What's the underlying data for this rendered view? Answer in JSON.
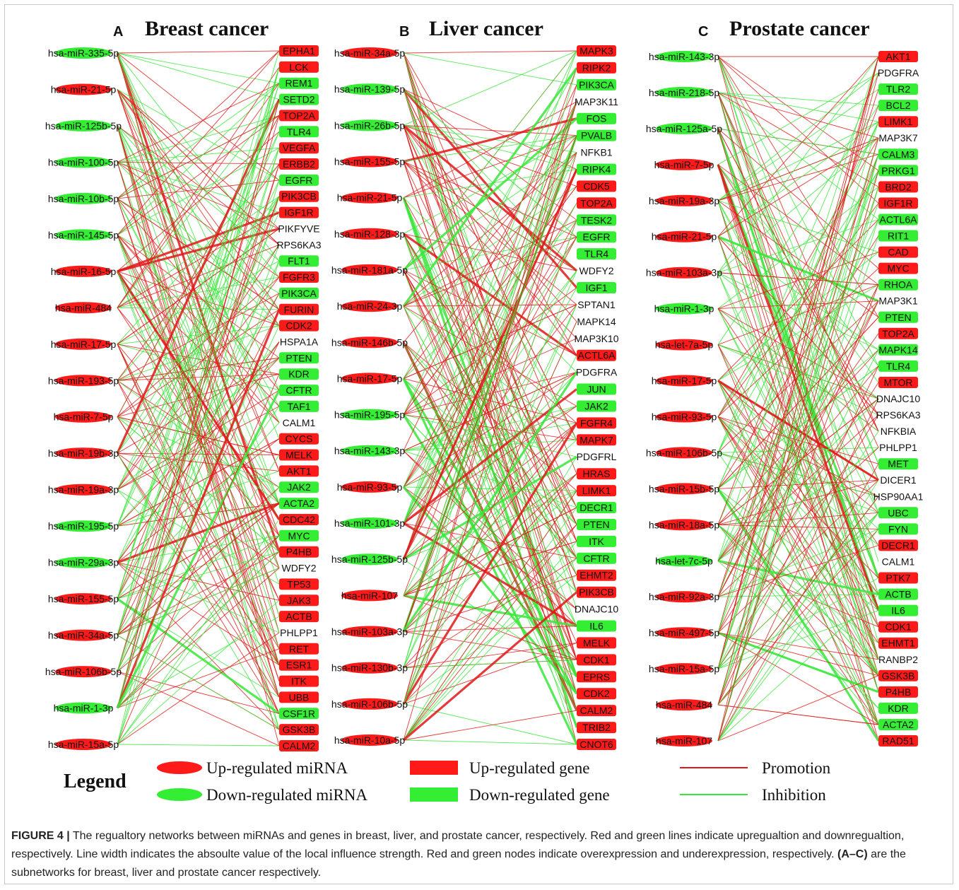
{
  "figure": {
    "panels": [
      {
        "letter": "A",
        "title": "Breast cancer",
        "mirnas": [
          {
            "label": "hsa-miR-335-5p",
            "status": "down"
          },
          {
            "label": "hsa-miR-21-5p",
            "status": "up"
          },
          {
            "label": "hsa-miR-125b-5p",
            "status": "down"
          },
          {
            "label": "hsa-miR-100-5p",
            "status": "down"
          },
          {
            "label": "hsa-miR-10b-5p",
            "status": "down"
          },
          {
            "label": "hsa-miR-145-5p",
            "status": "down"
          },
          {
            "label": "hsa-miR-16-5p",
            "status": "up"
          },
          {
            "label": "hsa-miR-484",
            "status": "up"
          },
          {
            "label": "hsa-miR-17-5p",
            "status": "up"
          },
          {
            "label": "hsa-miR-193-5p",
            "status": "up"
          },
          {
            "label": "hsa-miR-7-5p",
            "status": "up"
          },
          {
            "label": "hsa-miR-19b-3p",
            "status": "up"
          },
          {
            "label": "hsa-miR-19a-3p",
            "status": "up"
          },
          {
            "label": "hsa-miR-195-5p",
            "status": "down"
          },
          {
            "label": "hsa-miR-29a-3p",
            "status": "down"
          },
          {
            "label": "hsa-miR-155-5p",
            "status": "up"
          },
          {
            "label": "hsa-miR-34a-5p",
            "status": "up"
          },
          {
            "label": "hsa-miR-106b-5p",
            "status": "up"
          },
          {
            "label": "hsa-miR-1-3p",
            "status": "down"
          },
          {
            "label": "hsa-miR-15a-5p",
            "status": "up"
          }
        ],
        "genes": [
          {
            "label": "EPHA1",
            "status": "up"
          },
          {
            "label": "LCK",
            "status": "up"
          },
          {
            "label": "REM1",
            "status": "down"
          },
          {
            "label": "SETD2",
            "status": "down"
          },
          {
            "label": "TOP2A",
            "status": "up"
          },
          {
            "label": "TLR4",
            "status": "down"
          },
          {
            "label": "VEGFA",
            "status": "up"
          },
          {
            "label": "ERBB2",
            "status": "up"
          },
          {
            "label": "EGFR",
            "status": "down"
          },
          {
            "label": "PIK3CB",
            "status": "up"
          },
          {
            "label": "IGF1R",
            "status": "up"
          },
          {
            "label": "PIKFYVE",
            "status": "none"
          },
          {
            "label": "RPS6KA3",
            "status": "none"
          },
          {
            "label": "FLT1",
            "status": "down"
          },
          {
            "label": "FGFR3",
            "status": "up"
          },
          {
            "label": "PIK3CA",
            "status": "down"
          },
          {
            "label": "FURIN",
            "status": "up"
          },
          {
            "label": "CDK2",
            "status": "up"
          },
          {
            "label": "HSPA1A",
            "status": "none"
          },
          {
            "label": "PTEN",
            "status": "down"
          },
          {
            "label": "KDR",
            "status": "down"
          },
          {
            "label": "CFTR",
            "status": "down"
          },
          {
            "label": "TAF1",
            "status": "down"
          },
          {
            "label": "CALM1",
            "status": "none"
          },
          {
            "label": "CYCS",
            "status": "up"
          },
          {
            "label": "MELK",
            "status": "up"
          },
          {
            "label": "AKT1",
            "status": "up"
          },
          {
            "label": "JAK2",
            "status": "down"
          },
          {
            "label": "ACTA2",
            "status": "down"
          },
          {
            "label": "CDC42",
            "status": "up"
          },
          {
            "label": "MYC",
            "status": "down"
          },
          {
            "label": "P4HB",
            "status": "up"
          },
          {
            "label": "WDFY2",
            "status": "none"
          },
          {
            "label": "TP53",
            "status": "up"
          },
          {
            "label": "JAK3",
            "status": "up"
          },
          {
            "label": "ACTB",
            "status": "up"
          },
          {
            "label": "PHLPP1",
            "status": "none"
          },
          {
            "label": "RET",
            "status": "up"
          },
          {
            "label": "ESR1",
            "status": "up"
          },
          {
            "label": "ITK",
            "status": "up"
          },
          {
            "label": "UBB",
            "status": "up"
          },
          {
            "label": "CSF1R",
            "status": "down"
          },
          {
            "label": "GSK3B",
            "status": "up"
          },
          {
            "label": "CALM2",
            "status": "up"
          }
        ]
      },
      {
        "letter": "B",
        "title": "Liver cancer",
        "mirnas": [
          {
            "label": "hsa-miR-34a-5p",
            "status": "up"
          },
          {
            "label": "hsa-miR-139-5p",
            "status": "down"
          },
          {
            "label": "hsa-miR-26b-5p",
            "status": "down"
          },
          {
            "label": "hsa-miR-155-5p",
            "status": "up"
          },
          {
            "label": "hsa-miR-21-5p",
            "status": "up"
          },
          {
            "label": "hsa-miR-128-3p",
            "status": "up"
          },
          {
            "label": "hsa-miR-181a-5p",
            "status": "up"
          },
          {
            "label": "hsa-miR-24-3p",
            "status": "up"
          },
          {
            "label": "hsa-miR-146b-5p",
            "status": "up"
          },
          {
            "label": "hsa-miR-17-5p",
            "status": "up"
          },
          {
            "label": "hsa-miR-195-5p",
            "status": "down"
          },
          {
            "label": "hsa-miR-143-3p",
            "status": "down"
          },
          {
            "label": "hsa-miR-93-5p",
            "status": "up"
          },
          {
            "label": "hsa-miR-101-3p",
            "status": "down"
          },
          {
            "label": "hsa-miR-125b-5p",
            "status": "down"
          },
          {
            "label": "hsa-miR-107",
            "status": "up"
          },
          {
            "label": "hsa-miR-103a-3p",
            "status": "up"
          },
          {
            "label": "hsa-miR-130b-3p",
            "status": "up"
          },
          {
            "label": "hsa-miR-106b-5p",
            "status": "up"
          },
          {
            "label": "hsa-miR-10a-5p",
            "status": "up"
          }
        ],
        "genes": [
          {
            "label": "MAPK3",
            "status": "up"
          },
          {
            "label": "RIPK2",
            "status": "up"
          },
          {
            "label": "PIK3CA",
            "status": "down"
          },
          {
            "label": "MAP3K11",
            "status": "none"
          },
          {
            "label": "FOS",
            "status": "down"
          },
          {
            "label": "PVALB",
            "status": "down"
          },
          {
            "label": "NFKB1",
            "status": "none"
          },
          {
            "label": "RIPK4",
            "status": "down"
          },
          {
            "label": "CDK5",
            "status": "up"
          },
          {
            "label": "TOP2A",
            "status": "up"
          },
          {
            "label": "TESK2",
            "status": "down"
          },
          {
            "label": "EGFR",
            "status": "down"
          },
          {
            "label": "TLR4",
            "status": "down"
          },
          {
            "label": "WDFY2",
            "status": "none"
          },
          {
            "label": "IGF1",
            "status": "down"
          },
          {
            "label": "SPTAN1",
            "status": "none"
          },
          {
            "label": "MAPK14",
            "status": "none"
          },
          {
            "label": "MAP3K10",
            "status": "none"
          },
          {
            "label": "ACTL6A",
            "status": "up"
          },
          {
            "label": "PDGFRA",
            "status": "none"
          },
          {
            "label": "JUN",
            "status": "down"
          },
          {
            "label": "JAK2",
            "status": "down"
          },
          {
            "label": "FGFR4",
            "status": "up"
          },
          {
            "label": "MAPK7",
            "status": "up"
          },
          {
            "label": "PDGFRL",
            "status": "none"
          },
          {
            "label": "HRAS",
            "status": "up"
          },
          {
            "label": "LIMK1",
            "status": "up"
          },
          {
            "label": "DECR1",
            "status": "down"
          },
          {
            "label": "PTEN",
            "status": "down"
          },
          {
            "label": "ITK",
            "status": "down"
          },
          {
            "label": "CFTR",
            "status": "down"
          },
          {
            "label": "EHMT2",
            "status": "up"
          },
          {
            "label": "PIK3CB",
            "status": "up"
          },
          {
            "label": "DNAJC10",
            "status": "none"
          },
          {
            "label": "IL6",
            "status": "down"
          },
          {
            "label": "MELK",
            "status": "up"
          },
          {
            "label": "CDK1",
            "status": "up"
          },
          {
            "label": "EPRS",
            "status": "up"
          },
          {
            "label": "CDK2",
            "status": "up"
          },
          {
            "label": "CALM2",
            "status": "up"
          },
          {
            "label": "TRIB2",
            "status": "up"
          },
          {
            "label": "CNOT6",
            "status": "up"
          }
        ]
      },
      {
        "letter": "C",
        "title": "Prostate cancer",
        "mirnas": [
          {
            "label": "hsa-miR-143-3p",
            "status": "down"
          },
          {
            "label": "hsa-miR-218-5p",
            "status": "down"
          },
          {
            "label": "hsa-miR-125a-5p",
            "status": "down"
          },
          {
            "label": "hsa-miR-7-5p",
            "status": "up"
          },
          {
            "label": "hsa-miR-19a-3p",
            "status": "up"
          },
          {
            "label": "hsa-miR-21-5p",
            "status": "up"
          },
          {
            "label": "hsa-miR-103a-3p",
            "status": "up"
          },
          {
            "label": "hsa-miR-1-3p",
            "status": "down"
          },
          {
            "label": "hsa-let-7a-5p",
            "status": "up"
          },
          {
            "label": "hsa-miR-17-5p",
            "status": "up"
          },
          {
            "label": "hsa-miR-93-5p",
            "status": "up"
          },
          {
            "label": "hsa-miR-106b-5p",
            "status": "up"
          },
          {
            "label": "hsa-miR-15b-5p",
            "status": "up"
          },
          {
            "label": "hsa-miR-18a-5p",
            "status": "up"
          },
          {
            "label": "hsa-let-7c-5p",
            "status": "down"
          },
          {
            "label": "hsa-miR-92a-3p",
            "status": "up"
          },
          {
            "label": "hsa-miR-497-5p",
            "status": "up"
          },
          {
            "label": "hsa-miR-15a-5p",
            "status": "up"
          },
          {
            "label": "hsa-miR-484",
            "status": "up"
          },
          {
            "label": "hsa-miR-107",
            "status": "up"
          }
        ],
        "genes": [
          {
            "label": "AKT1",
            "status": "up"
          },
          {
            "label": "PDGFRA",
            "status": "none"
          },
          {
            "label": "TLR2",
            "status": "down"
          },
          {
            "label": "BCL2",
            "status": "down"
          },
          {
            "label": "LIMK1",
            "status": "up"
          },
          {
            "label": "MAP3K7",
            "status": "none"
          },
          {
            "label": "CALM3",
            "status": "down"
          },
          {
            "label": "PRKG1",
            "status": "down"
          },
          {
            "label": "BRD2",
            "status": "up"
          },
          {
            "label": "IGF1R",
            "status": "up"
          },
          {
            "label": "ACTL6A",
            "status": "down"
          },
          {
            "label": "RIT1",
            "status": "down"
          },
          {
            "label": "CAD",
            "status": "up"
          },
          {
            "label": "MYC",
            "status": "up"
          },
          {
            "label": "RHOA",
            "status": "down"
          },
          {
            "label": "MAP3K1",
            "status": "none"
          },
          {
            "label": "PTEN",
            "status": "down"
          },
          {
            "label": "TOP2A",
            "status": "up"
          },
          {
            "label": "MAPK14",
            "status": "down"
          },
          {
            "label": "TLR4",
            "status": "down"
          },
          {
            "label": "MTOR",
            "status": "up"
          },
          {
            "label": "DNAJC10",
            "status": "none"
          },
          {
            "label": "RPS6KA3",
            "status": "none"
          },
          {
            "label": "NFKBIA",
            "status": "none"
          },
          {
            "label": "PHLPP1",
            "status": "none"
          },
          {
            "label": "MET",
            "status": "down"
          },
          {
            "label": "DICER1",
            "status": "none"
          },
          {
            "label": "HSP90AA1",
            "status": "none"
          },
          {
            "label": "UBC",
            "status": "down"
          },
          {
            "label": "FYN",
            "status": "down"
          },
          {
            "label": "DECR1",
            "status": "up"
          },
          {
            "label": "CALM1",
            "status": "none"
          },
          {
            "label": "PTK7",
            "status": "up"
          },
          {
            "label": "ACTB",
            "status": "down"
          },
          {
            "label": "IL6",
            "status": "down"
          },
          {
            "label": "CDK1",
            "status": "up"
          },
          {
            "label": "EHMT1",
            "status": "up"
          },
          {
            "label": "RANBP2",
            "status": "none"
          },
          {
            "label": "GSK3B",
            "status": "up"
          },
          {
            "label": "P4HB",
            "status": "up"
          },
          {
            "label": "KDR",
            "status": "down"
          },
          {
            "label": "ACTA2",
            "status": "down"
          },
          {
            "label": "RAD51",
            "status": "up"
          }
        ]
      }
    ],
    "legend": {
      "title": "Legend",
      "up_mirna": "Up-regulated miRNA",
      "down_mirna": "Down-regulated miRNA",
      "up_gene": "Up-regulated gene",
      "down_gene": "Down-regulated gene",
      "promotion": "Promotion",
      "inhibition": "Inhibition"
    },
    "colors": {
      "up": "#ff1a1a",
      "down": "#33ee33",
      "promotion_line": "#e01818",
      "inhibition_line": "#38e638"
    }
  },
  "caption": {
    "label": "FIGURE 4 |",
    "text": " The regualtory networks between miRNAs and genes in breast, liver, and prostate cancer, respectively. Red and green lines indicate upregualtion and downregualtion, respectively. Line width indicates the absoulte value of the local influence strength. Red and green nodes indicate overexpression and underexpression, respectively. ",
    "bold_ref": "(A–C)",
    "text_end": " are the subnetworks for breast, liver and prostate cancer respectively."
  }
}
